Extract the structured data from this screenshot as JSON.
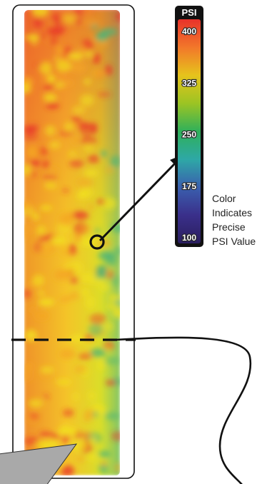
{
  "scale": {
    "title": "PSI",
    "ticks": [
      400,
      325,
      250,
      175,
      100
    ],
    "min": 100,
    "max": 400,
    "gradient_colors": [
      "#e8322a",
      "#f2772a",
      "#e6c31c",
      "#9cc423",
      "#2fb05a",
      "#2ea8a6",
      "#3a5fae",
      "#3a2f8a",
      "#2a1e5e"
    ]
  },
  "caption": {
    "lines": [
      "Color",
      "Indicates",
      "Precise",
      "PSI Value"
    ]
  },
  "colors": {
    "hot": "#e8322a",
    "warm": "#f5a623",
    "mid": "#f2e21e",
    "cool": "#49b37a",
    "outline": "#111111"
  }
}
